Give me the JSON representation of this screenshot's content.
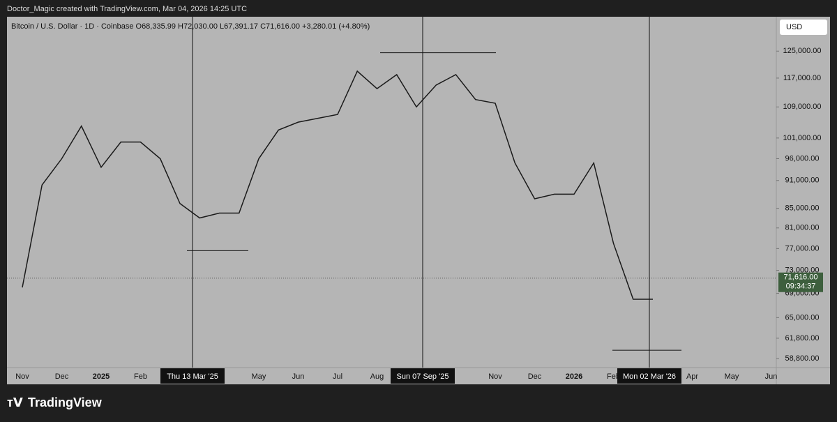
{
  "header": {
    "credit": "Doctor_Magic created with TradingView.com, Mar 04, 2026 14:25 UTC",
    "brand": "TradingView"
  },
  "chart_data": {
    "type": "line",
    "title": "Bitcoin / U.S. Dollar · 1D · Coinbase  O68,335.99  H72,030.00  L67,391.17  C71,616.00  +3,280.01 (+4.80%)",
    "currency": "USD",
    "categories": [
      "Nov",
      null,
      "Dec",
      null,
      "2025",
      null,
      "Feb",
      null,
      null,
      null,
      null,
      null,
      "May",
      null,
      "Jun",
      null,
      "Jul",
      null,
      "Aug",
      null,
      null,
      null,
      null,
      null,
      "Nov",
      null,
      "Dec",
      null,
      "2026",
      null,
      "Feb",
      null,
      null,
      null,
      "Apr",
      null,
      "May",
      null,
      "Jun"
    ],
    "series": [
      {
        "name": "BTCUSD",
        "color": "#1a1a1a",
        "values": [
          70000,
          90000,
          96000,
          104000,
          94000,
          100000,
          100000,
          96000,
          86000,
          83000,
          84000,
          84000,
          96000,
          103000,
          105000,
          106000,
          107000,
          119000,
          114000,
          118000,
          109000,
          115000,
          118000,
          111000,
          110000,
          95000,
          87000,
          88000,
          88000,
          95000,
          78000,
          68000,
          68000,
          null,
          null,
          null,
          null,
          null,
          null
        ]
      }
    ],
    "log_scale": true,
    "ylim": [
      57500,
      136000
    ],
    "yticks": [
      {
        "value": 125000,
        "label": "125,000.00"
      },
      {
        "value": 117000,
        "label": "117,000.00"
      },
      {
        "value": 109000,
        "label": "109,000.00"
      },
      {
        "value": 101000,
        "label": "101,000.00"
      },
      {
        "value": 96000,
        "label": "96,000.00"
      },
      {
        "value": 91000,
        "label": "91,000.00"
      },
      {
        "value": 85000,
        "label": "85,000.00"
      },
      {
        "value": 81000,
        "label": "81,000.00"
      },
      {
        "value": 77000,
        "label": "77,000.00"
      },
      {
        "value": 73000,
        "label": "73,000.00"
      },
      {
        "value": 69000,
        "label": "69,000.00"
      },
      {
        "value": 65000,
        "label": "65,000.00"
      },
      {
        "value": 61800,
        "label": "61,800.00"
      },
      {
        "value": 58800,
        "label": "58,800.00"
      }
    ],
    "last_price": {
      "value": 71616,
      "label": "71,616.00",
      "countdown": "09:34:37",
      "color": "#3d5f3d"
    },
    "hlines": [
      76600,
      124500,
      60000
    ],
    "crosshair_labels": [
      "Thu 13 Mar '25",
      "Sun 07 Sep '25",
      "Mon 02 Mar '26"
    ]
  }
}
